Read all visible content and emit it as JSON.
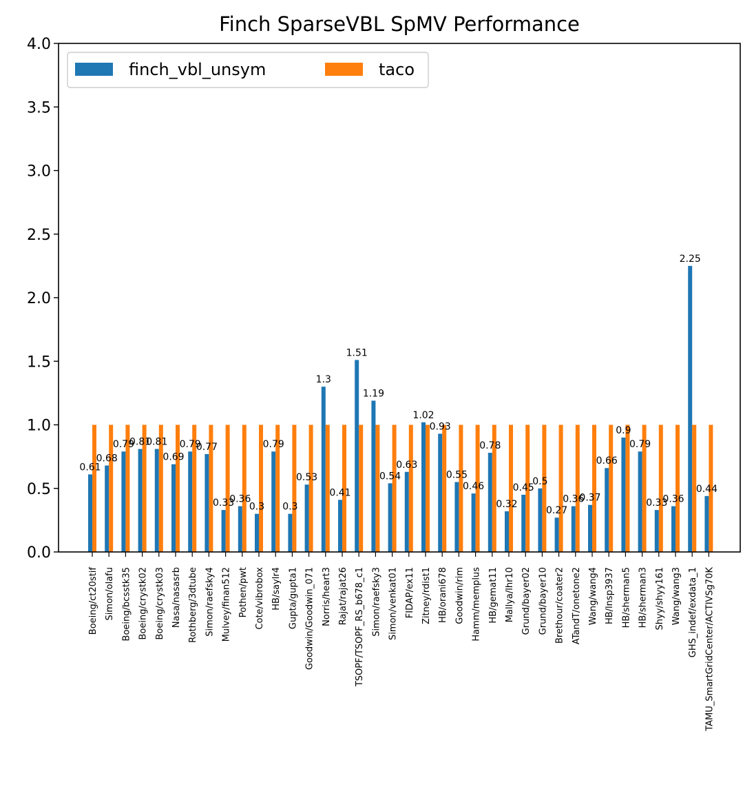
{
  "chart_data": {
    "type": "bar",
    "title": "Finch SparseVBL SpMV Performance",
    "xlabel": "",
    "ylabel": "",
    "ylim": [
      0,
      4
    ],
    "yticks": [
      "0.0",
      "0.5",
      "1.0",
      "1.5",
      "2.0",
      "2.5",
      "3.0",
      "3.5",
      "4.0"
    ],
    "grid": false,
    "legend_position": "top-left",
    "categories": [
      "Boeing/ct20stif",
      "Simon/olafu",
      "Boeing/bcsstk35",
      "Boeing/crystk02",
      "Boeing/crystk03",
      "Nasa/nasasrb",
      "Rothberg/3dtube",
      "Simon/raefsky4",
      "Mulvey/finan512",
      "Pothen/pwt",
      "Cote/vibrobox",
      "HB/saylr4",
      "Gupta/gupta1",
      "Goodwin/Goodwin_071",
      "Norris/heart3",
      "Rajat/rajat26",
      "TSOPF/TSOPF_RS_b678_c1",
      "Simon/raefsky3",
      "Simon/venkat01",
      "FIDAP/ex11",
      "Zitney/rdist1",
      "HB/orani678",
      "Goodwin/rim",
      "Hamm/memplus",
      "HB/gemat11",
      "Mallya/lhr10",
      "Grund/bayer02",
      "Grund/bayer10",
      "Brethour/coater2",
      "ATandT/onetone2",
      "Wang/wang4",
      "HB/lnsp3937",
      "HB/sherman5",
      "HB/sherman3",
      "Shyy/shyy161",
      "Wang/wang3",
      "GHS_indef/exdata_1",
      "TAMU_SmartGridCenter/ACTIVSg70K"
    ],
    "series": [
      {
        "name": "finch_vbl_unsym",
        "color": "#1f77b4",
        "values": [
          0.61,
          0.68,
          0.79,
          0.81,
          0.81,
          0.69,
          0.79,
          0.77,
          0.33,
          0.36,
          0.3,
          0.79,
          0.3,
          0.53,
          1.3,
          0.41,
          1.51,
          1.19,
          0.54,
          0.63,
          1.02,
          0.93,
          0.55,
          0.46,
          0.78,
          0.32,
          0.45,
          0.5,
          0.27,
          0.36,
          0.37,
          0.66,
          0.9,
          0.79,
          0.33,
          0.36,
          2.25,
          0.44
        ],
        "labels": [
          "0.61",
          "0.68",
          "0.79",
          "0.81",
          "0.81",
          "0.69",
          "0.79",
          "0.77",
          "0.33",
          "0.36",
          "0.3",
          "0.79",
          "0.3",
          "0.53",
          "1.3",
          "0.41",
          "1.51",
          "1.19",
          "0.54",
          "0.63",
          "1.02",
          "0.93",
          "0.55",
          "0.46",
          "0.78",
          "0.32",
          "0.45",
          "0.5",
          "0.27",
          "0.36",
          "0.37",
          "0.66",
          "0.9",
          "0.79",
          "0.33",
          "0.36",
          "2.25",
          "0.44"
        ]
      },
      {
        "name": "taco",
        "color": "#ff7f0e",
        "values": [
          1,
          1,
          1,
          1,
          1,
          1,
          1,
          1,
          1,
          1,
          1,
          1,
          1,
          1,
          1,
          1,
          1,
          1,
          1,
          1,
          1,
          1,
          1,
          1,
          1,
          1,
          1,
          1,
          1,
          1,
          1,
          1,
          1,
          1,
          1,
          1,
          1,
          1
        ]
      }
    ]
  }
}
